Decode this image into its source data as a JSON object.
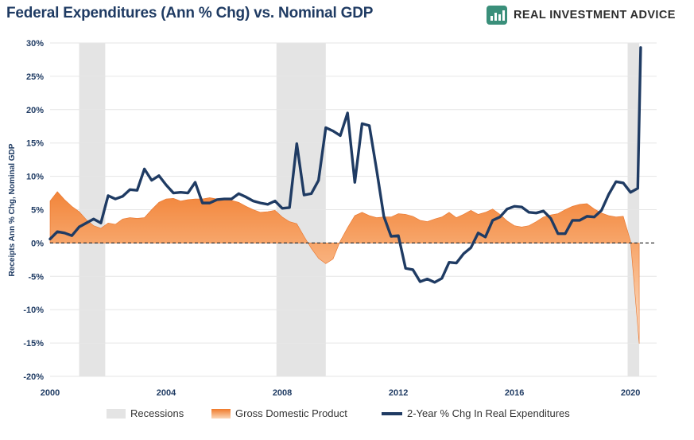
{
  "header": {
    "title": "Federal Expenditures (Ann % Chg) vs. Nominal GDP",
    "brand_name": "REAL INVESTMENT ADVICE",
    "brand_icon": "bar-chart-icon"
  },
  "colors": {
    "title": "#1f3b63",
    "recession": "#e4e4e4",
    "gdp_fill_top": "#f07a2a",
    "gdp_fill_bottom": "#fbd7b8",
    "expenditure_line": "#1f3b63",
    "brand_green": "#3a8f7a"
  },
  "chart_data": {
    "type": "area",
    "title": "Federal Expenditures (Ann % Chg) vs. Nominal GDP",
    "ylabel": "Receipts Ann % Chg, Nominal GDP",
    "xlabel": "",
    "xlim": [
      2000.0,
      2020.9
    ],
    "ylim": [
      -20,
      30
    ],
    "x_ticks": [
      2000,
      2004,
      2008,
      2012,
      2016,
      2020
    ],
    "x_tick_labels": [
      "2000",
      "2004",
      "2008",
      "2012",
      "2016",
      "2020"
    ],
    "y_ticks": [
      -20,
      -15,
      -10,
      -5,
      0,
      5,
      10,
      15,
      20,
      25,
      30
    ],
    "y_tick_labels": [
      "-20%",
      "-15%",
      "-10%",
      "-5%",
      "0%",
      "5%",
      "10%",
      "15%",
      "20%",
      "25%",
      "30%"
    ],
    "grid": "horizontal",
    "legend_position": "bottom",
    "recessions": [
      {
        "start": 2001.0,
        "end": 2001.9
      },
      {
        "start": 2007.8,
        "end": 2009.5
      },
      {
        "start": 2019.9,
        "end": 2020.3
      }
    ],
    "series": [
      {
        "name": "Gross Domestic Product",
        "kind": "area",
        "points": [
          [
            2000.0,
            6.3
          ],
          [
            2000.25,
            7.7
          ],
          [
            2000.5,
            6.5
          ],
          [
            2000.75,
            5.5
          ],
          [
            2001.0,
            4.7
          ],
          [
            2001.25,
            3.5
          ],
          [
            2001.5,
            2.6
          ],
          [
            2001.75,
            2.2
          ],
          [
            2002.0,
            3.0
          ],
          [
            2002.25,
            2.8
          ],
          [
            2002.5,
            3.6
          ],
          [
            2002.75,
            3.8
          ],
          [
            2003.0,
            3.7
          ],
          [
            2003.25,
            3.8
          ],
          [
            2003.5,
            5.0
          ],
          [
            2003.75,
            6.1
          ],
          [
            2004.0,
            6.6
          ],
          [
            2004.25,
            6.7
          ],
          [
            2004.5,
            6.3
          ],
          [
            2004.75,
            6.5
          ],
          [
            2005.0,
            6.6
          ],
          [
            2005.25,
            6.6
          ],
          [
            2005.5,
            6.8
          ],
          [
            2005.75,
            6.6
          ],
          [
            2006.0,
            6.6
          ],
          [
            2006.25,
            6.4
          ],
          [
            2006.5,
            6.1
          ],
          [
            2006.75,
            5.5
          ],
          [
            2007.0,
            5.0
          ],
          [
            2007.25,
            4.6
          ],
          [
            2007.5,
            4.7
          ],
          [
            2007.75,
            4.9
          ],
          [
            2008.0,
            3.9
          ],
          [
            2008.25,
            3.2
          ],
          [
            2008.5,
            2.9
          ],
          [
            2008.75,
            1.0
          ],
          [
            2009.0,
            -0.8
          ],
          [
            2009.25,
            -2.3
          ],
          [
            2009.5,
            -3.1
          ],
          [
            2009.75,
            -2.4
          ],
          [
            2010.0,
            0.3
          ],
          [
            2010.25,
            2.3
          ],
          [
            2010.5,
            4.1
          ],
          [
            2010.75,
            4.6
          ],
          [
            2011.0,
            4.1
          ],
          [
            2011.25,
            3.8
          ],
          [
            2011.5,
            3.9
          ],
          [
            2011.75,
            3.9
          ],
          [
            2012.0,
            4.4
          ],
          [
            2012.25,
            4.3
          ],
          [
            2012.5,
            4.0
          ],
          [
            2012.75,
            3.4
          ],
          [
            2013.0,
            3.2
          ],
          [
            2013.25,
            3.6
          ],
          [
            2013.5,
            3.9
          ],
          [
            2013.75,
            4.6
          ],
          [
            2014.0,
            3.8
          ],
          [
            2014.25,
            4.3
          ],
          [
            2014.5,
            4.9
          ],
          [
            2014.75,
            4.3
          ],
          [
            2015.0,
            4.6
          ],
          [
            2015.25,
            5.1
          ],
          [
            2015.5,
            4.3
          ],
          [
            2015.75,
            3.3
          ],
          [
            2016.0,
            2.6
          ],
          [
            2016.25,
            2.4
          ],
          [
            2016.5,
            2.6
          ],
          [
            2016.75,
            3.2
          ],
          [
            2017.0,
            3.9
          ],
          [
            2017.25,
            4.2
          ],
          [
            2017.5,
            4.4
          ],
          [
            2017.75,
            5.0
          ],
          [
            2018.0,
            5.5
          ],
          [
            2018.25,
            5.8
          ],
          [
            2018.5,
            5.9
          ],
          [
            2018.75,
            5.1
          ],
          [
            2019.0,
            4.5
          ],
          [
            2019.25,
            4.1
          ],
          [
            2019.5,
            3.9
          ],
          [
            2019.75,
            4.0
          ],
          [
            2020.0,
            0.3
          ],
          [
            2020.3,
            -15.1
          ]
        ]
      },
      {
        "name": "2-Year % Chg In Real Expenditures",
        "kind": "line",
        "points": [
          [
            2000.0,
            0.6
          ],
          [
            2000.25,
            1.7
          ],
          [
            2000.5,
            1.5
          ],
          [
            2000.75,
            1.1
          ],
          [
            2001.0,
            2.4
          ],
          [
            2001.25,
            3.0
          ],
          [
            2001.5,
            3.6
          ],
          [
            2001.75,
            3.0
          ],
          [
            2002.0,
            7.1
          ],
          [
            2002.25,
            6.6
          ],
          [
            2002.5,
            7.0
          ],
          [
            2002.75,
            8.0
          ],
          [
            2003.0,
            7.9
          ],
          [
            2003.25,
            11.1
          ],
          [
            2003.5,
            9.4
          ],
          [
            2003.75,
            10.1
          ],
          [
            2004.0,
            8.7
          ],
          [
            2004.25,
            7.5
          ],
          [
            2004.5,
            7.6
          ],
          [
            2004.75,
            7.5
          ],
          [
            2005.0,
            9.1
          ],
          [
            2005.25,
            6.0
          ],
          [
            2005.5,
            6.0
          ],
          [
            2005.75,
            6.5
          ],
          [
            2006.0,
            6.6
          ],
          [
            2006.25,
            6.6
          ],
          [
            2006.5,
            7.4
          ],
          [
            2006.75,
            6.9
          ],
          [
            2007.0,
            6.3
          ],
          [
            2007.25,
            6.0
          ],
          [
            2007.5,
            5.8
          ],
          [
            2007.75,
            6.3
          ],
          [
            2008.0,
            5.2
          ],
          [
            2008.25,
            5.3
          ],
          [
            2008.5,
            14.9
          ],
          [
            2008.75,
            7.2
          ],
          [
            2009.0,
            7.4
          ],
          [
            2009.25,
            9.4
          ],
          [
            2009.5,
            17.3
          ],
          [
            2009.75,
            16.8
          ],
          [
            2010.0,
            16.1
          ],
          [
            2010.25,
            19.5
          ],
          [
            2010.5,
            9.1
          ],
          [
            2010.75,
            17.9
          ],
          [
            2011.0,
            17.6
          ],
          [
            2011.25,
            11.0
          ],
          [
            2011.5,
            4.0
          ],
          [
            2011.75,
            1.0
          ],
          [
            2012.0,
            1.1
          ],
          [
            2012.25,
            -3.8
          ],
          [
            2012.5,
            -4.0
          ],
          [
            2012.75,
            -5.8
          ],
          [
            2013.0,
            -5.4
          ],
          [
            2013.25,
            -5.9
          ],
          [
            2013.5,
            -5.3
          ],
          [
            2013.75,
            -2.9
          ],
          [
            2014.0,
            -3.0
          ],
          [
            2014.25,
            -1.6
          ],
          [
            2014.5,
            -0.7
          ],
          [
            2014.75,
            1.5
          ],
          [
            2015.0,
            0.9
          ],
          [
            2015.25,
            3.4
          ],
          [
            2015.5,
            3.9
          ],
          [
            2015.75,
            5.1
          ],
          [
            2016.0,
            5.5
          ],
          [
            2016.25,
            5.4
          ],
          [
            2016.5,
            4.6
          ],
          [
            2016.75,
            4.5
          ],
          [
            2017.0,
            4.8
          ],
          [
            2017.25,
            3.7
          ],
          [
            2017.5,
            1.4
          ],
          [
            2017.75,
            1.4
          ],
          [
            2018.0,
            3.4
          ],
          [
            2018.25,
            3.4
          ],
          [
            2018.5,
            4.0
          ],
          [
            2018.75,
            3.9
          ],
          [
            2019.0,
            4.9
          ],
          [
            2019.25,
            7.3
          ],
          [
            2019.5,
            9.2
          ],
          [
            2019.75,
            9.0
          ],
          [
            2020.0,
            7.6
          ],
          [
            2020.25,
            8.2
          ],
          [
            2020.35,
            29.3
          ]
        ]
      }
    ]
  },
  "legend": {
    "recessions_label": "Recessions",
    "gdp_label": "Gross Domestic Product",
    "expenditure_label": "2-Year % Chg In Real Expenditures"
  }
}
